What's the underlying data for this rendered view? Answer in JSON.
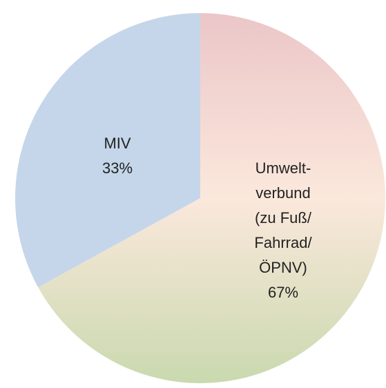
{
  "chart_data": {
    "type": "pie",
    "categories": [
      "Umwelt-\nverbund\n(zu Fuß/\nFahrrad/\nÖPNV)",
      "MIV"
    ],
    "values": [
      67,
      33
    ],
    "value_labels": [
      "67%",
      "33%"
    ],
    "colors": [
      [
        "#ebc6c8",
        "#fbe8dc",
        "#c9d9ae"
      ],
      [
        "#c5d6ea"
      ]
    ],
    "start": "top",
    "direction": "clockwise"
  }
}
